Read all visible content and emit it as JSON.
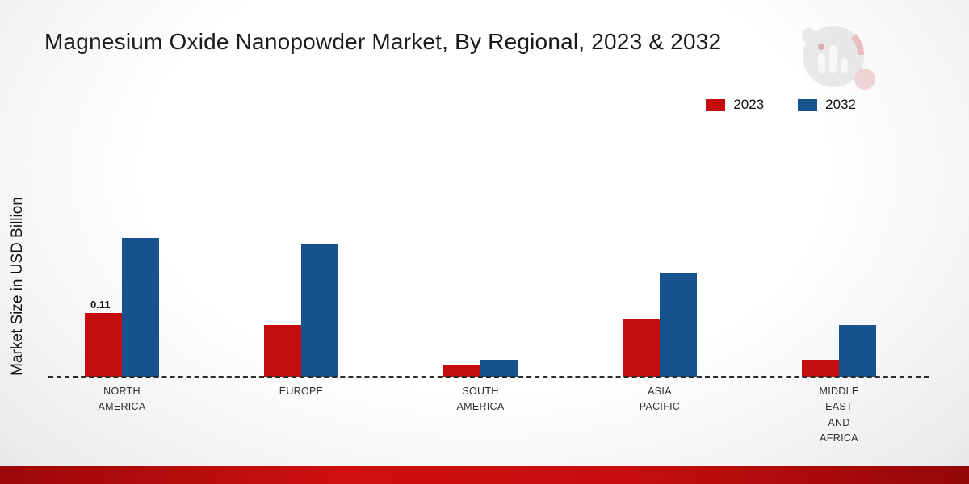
{
  "page": {
    "title": "Magnesium Oxide Nanopowder Market, By Regional, 2023 & 2032",
    "ylabel": "Market Size in USD Billion"
  },
  "legend": {
    "items": [
      {
        "label": "2023",
        "color": "#c40d0d"
      },
      {
        "label": "2032",
        "color": "#17518e"
      }
    ]
  },
  "chart_data": {
    "type": "bar",
    "title": "Magnesium Oxide Nanopowder Market, By Regional, 2023 & 2032",
    "ylabel": "Market Size in USD Billion",
    "xlabel": "",
    "unit": "USD Billion",
    "categories": [
      "North America",
      "Europe",
      "South America",
      "Asia Pacific",
      "Middle East and Africa"
    ],
    "category_labels": [
      [
        "NORTH",
        "AMERICA"
      ],
      [
        "EUROPE"
      ],
      [
        "SOUTH",
        "AMERICA"
      ],
      [
        "ASIA",
        "PACIFIC"
      ],
      [
        "MIDDLE",
        "EAST",
        "AND",
        "AFRICA"
      ]
    ],
    "series": [
      {
        "name": "2023",
        "color": "#c40d0d",
        "values": [
          0.11,
          0.09,
          0.02,
          0.1,
          0.03
        ]
      },
      {
        "name": "2032",
        "color": "#17518e",
        "values": [
          0.24,
          0.23,
          0.03,
          0.18,
          0.09
        ]
      }
    ],
    "data_labels": [
      {
        "series_index": 0,
        "category_index": 0,
        "text": "0.11"
      }
    ],
    "ylim": [
      0,
      0.26
    ],
    "grid": false,
    "baseline_style": "dashed",
    "legend_position": "top-right"
  }
}
